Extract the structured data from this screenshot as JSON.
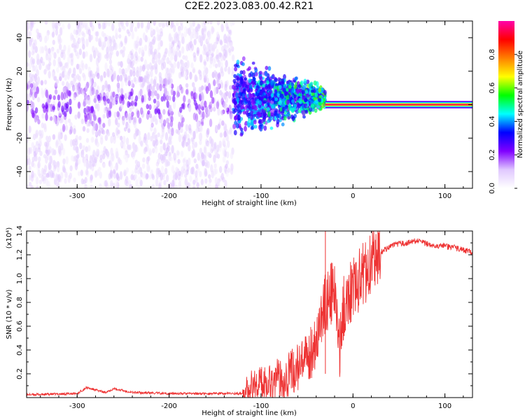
{
  "title": "C2E2.2023.083.00.42.R21",
  "chart_data": [
    {
      "type": "heatmap",
      "xlabel": "Height of straight line (km)",
      "ylabel": "Frequency (Hz)",
      "xlim": [
        -355,
        130
      ],
      "ylim": [
        -50,
        50
      ],
      "xticks": [
        -300,
        -200,
        -100,
        0,
        100
      ],
      "yticks": [
        -40,
        -20,
        0,
        20,
        40
      ],
      "colorbar": {
        "label": "Normalized spectral amplitude",
        "range": [
          0.0,
          1.0
        ],
        "ticks": [
          0.0,
          0.2,
          0.4,
          0.6,
          0.8
        ],
        "colors": [
          "#ffffff",
          "#e0c8ff",
          "#8000ff",
          "#0000ff",
          "#00ffff",
          "#00ff00",
          "#ffff00",
          "#ff8000",
          "#ff0000",
          "#ff00aa"
        ]
      },
      "regions": [
        {
          "x": [
            -355,
            -130
          ],
          "freq_range": [
            -50,
            50
          ],
          "amplitude": 0.08,
          "description": "broadband noise"
        },
        {
          "x": [
            -130,
            -30
          ],
          "freq_range": [
            -12,
            20
          ],
          "amplitude": 0.3
        },
        {
          "x": [
            -30,
            130
          ],
          "freq_range": [
            -1.5,
            1.5
          ],
          "amplitude": 0.95
        }
      ]
    },
    {
      "type": "line",
      "xlabel": "Height of straight line (km)",
      "ylabel": "SNR (10 * v/v)",
      "y_multiplier": "(x10⁴)",
      "xlim": [
        -355,
        130
      ],
      "ylim": [
        0.0,
        1.4
      ],
      "xticks": [
        -300,
        -200,
        -100,
        0,
        100
      ],
      "yticks": [
        0.2,
        0.4,
        0.6,
        0.8,
        1.0,
        1.2,
        1.4
      ],
      "color": "#ee3333",
      "series": [
        {
          "x": [
            -355,
            -300,
            -290,
            -270,
            -260,
            -240,
            -200,
            -160,
            -120,
            -115,
            -110,
            -100,
            -90,
            -80,
            -70,
            -60,
            -50,
            -40,
            -35,
            -30,
            -25,
            -20,
            -15,
            -10,
            -5,
            0,
            10,
            20,
            30,
            40,
            50,
            60,
            70,
            80,
            90,
            100,
            110,
            120,
            130
          ],
          "y": [
            0.02,
            0.03,
            0.08,
            0.04,
            0.07,
            0.04,
            0.03,
            0.03,
            0.03,
            0.05,
            0.1,
            0.12,
            0.14,
            0.15,
            0.2,
            0.25,
            0.3,
            0.5,
            0.62,
            0.8,
            0.85,
            0.9,
            0.4,
            0.75,
            0.88,
            0.93,
            1.02,
            1.15,
            1.22,
            1.27,
            1.29,
            1.3,
            1.32,
            1.29,
            1.28,
            1.27,
            1.26,
            1.24,
            1.22
          ]
        }
      ]
    }
  ]
}
